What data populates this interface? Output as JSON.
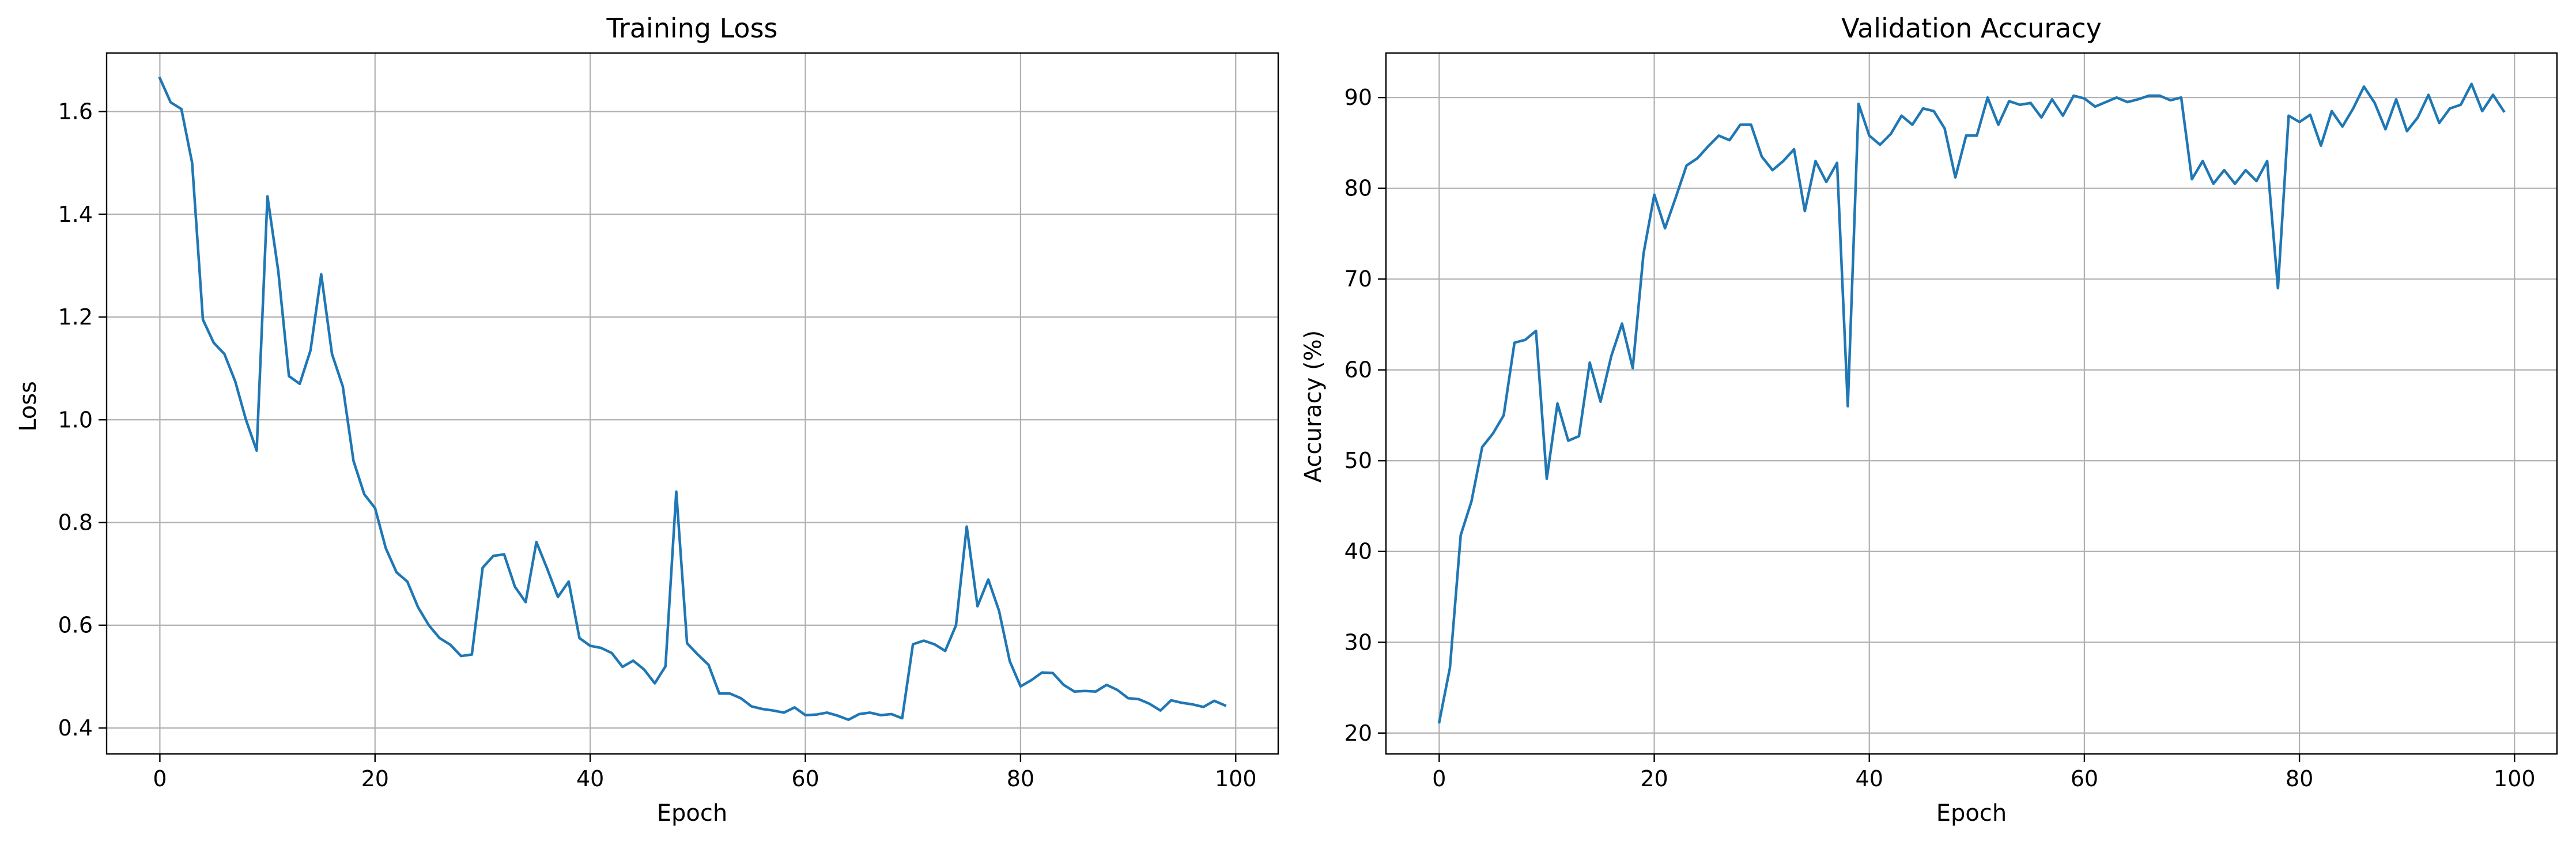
{
  "figure": {
    "background": "#ffffff"
  },
  "chart_data": [
    {
      "type": "line",
      "title": "Training Loss",
      "xlabel": "Epoch",
      "ylabel": "Loss",
      "xlim": [
        -4.95,
        103.95
      ],
      "ylim": [
        0.3495,
        1.7139
      ],
      "xticks": [
        0,
        20,
        40,
        60,
        80,
        100
      ],
      "yticks": [
        0.4,
        0.6,
        0.8,
        1.0,
        1.2,
        1.4,
        1.6
      ],
      "xtick_labels": [
        "0",
        "20",
        "40",
        "60",
        "80",
        "100"
      ],
      "ytick_labels": [
        "0.4",
        "0.6",
        "0.8",
        "1.0",
        "1.2",
        "1.4",
        "1.6"
      ],
      "grid": true,
      "legend": null,
      "series": [
        {
          "color": "#1f77b4",
          "x": [
            0,
            1,
            2,
            3,
            4,
            5,
            6,
            7,
            8,
            9,
            10,
            11,
            12,
            13,
            14,
            15,
            16,
            17,
            18,
            19,
            20,
            21,
            22,
            23,
            24,
            25,
            26,
            27,
            28,
            29,
            30,
            31,
            32,
            33,
            34,
            35,
            36,
            37,
            38,
            39,
            40,
            41,
            42,
            43,
            44,
            45,
            46,
            47,
            48,
            49,
            50,
            51,
            52,
            53,
            54,
            55,
            56,
            57,
            58,
            59,
            60,
            61,
            62,
            63,
            64,
            65,
            66,
            67,
            68,
            69,
            70,
            71,
            72,
            73,
            74,
            75,
            76,
            77,
            78,
            79,
            80,
            81,
            82,
            83,
            84,
            85,
            86,
            87,
            88,
            89,
            90,
            91,
            92,
            93,
            94,
            95,
            96,
            97,
            98,
            99
          ],
          "values": [
            1.665,
            1.618,
            1.605,
            1.5,
            1.195,
            1.15,
            1.128,
            1.075,
            1.0,
            0.94,
            1.435,
            1.29,
            1.085,
            1.07,
            1.135,
            1.283,
            1.128,
            1.065,
            0.92,
            0.855,
            0.828,
            0.75,
            0.703,
            0.685,
            0.635,
            0.6,
            0.575,
            0.562,
            0.54,
            0.543,
            0.712,
            0.735,
            0.738,
            0.675,
            0.645,
            0.762,
            0.71,
            0.655,
            0.685,
            0.575,
            0.56,
            0.556,
            0.546,
            0.519,
            0.531,
            0.514,
            0.487,
            0.52,
            0.86,
            0.565,
            0.543,
            0.523,
            0.467,
            0.467,
            0.458,
            0.442,
            0.437,
            0.434,
            0.43,
            0.44,
            0.425,
            0.426,
            0.43,
            0.424,
            0.416,
            0.427,
            0.43,
            0.425,
            0.427,
            0.419,
            0.563,
            0.57,
            0.563,
            0.55,
            0.6,
            0.792,
            0.637,
            0.689,
            0.628,
            0.53,
            0.481,
            0.493,
            0.508,
            0.507,
            0.484,
            0.471,
            0.472,
            0.471,
            0.484,
            0.474,
            0.458,
            0.456,
            0.447,
            0.434,
            0.454,
            0.449,
            0.446,
            0.441,
            0.453,
            0.444
          ]
        }
      ]
    },
    {
      "type": "line",
      "title": "Validation Accuracy",
      "xlabel": "Epoch",
      "ylabel": "Accuracy (%)",
      "xlim": [
        -4.95,
        103.95
      ],
      "ylim": [
        17.7,
        94.9
      ],
      "xticks": [
        0,
        20,
        40,
        60,
        80,
        100
      ],
      "yticks": [
        20,
        30,
        40,
        50,
        60,
        70,
        80,
        90
      ],
      "xtick_labels": [
        "0",
        "20",
        "40",
        "60",
        "80",
        "100"
      ],
      "ytick_labels": [
        "20",
        "30",
        "40",
        "50",
        "60",
        "70",
        "80",
        "90"
      ],
      "grid": true,
      "legend": null,
      "series": [
        {
          "color": "#1f77b4",
          "x": [
            0,
            1,
            2,
            3,
            4,
            5,
            6,
            7,
            8,
            9,
            10,
            11,
            12,
            13,
            14,
            15,
            16,
            17,
            18,
            19,
            20,
            21,
            22,
            23,
            24,
            25,
            26,
            27,
            28,
            29,
            30,
            31,
            32,
            33,
            34,
            35,
            36,
            37,
            38,
            39,
            40,
            41,
            42,
            43,
            44,
            45,
            46,
            47,
            48,
            49,
            50,
            51,
            52,
            53,
            54,
            55,
            56,
            57,
            58,
            59,
            60,
            61,
            62,
            63,
            64,
            65,
            66,
            67,
            68,
            69,
            70,
            71,
            72,
            73,
            74,
            75,
            76,
            77,
            78,
            79,
            80,
            81,
            82,
            83,
            84,
            85,
            86,
            87,
            88,
            89,
            90,
            91,
            92,
            93,
            94,
            95,
            96,
            97,
            98,
            99
          ],
          "values": [
            21.2,
            27.2,
            41.8,
            45.5,
            51.5,
            53.0,
            55.0,
            63.0,
            63.3,
            64.3,
            48.0,
            56.3,
            52.2,
            52.7,
            60.8,
            56.5,
            61.5,
            65.1,
            60.2,
            72.8,
            79.3,
            75.6,
            79.0,
            82.5,
            83.3,
            84.6,
            85.8,
            85.3,
            87.0,
            87.0,
            83.5,
            82.0,
            83.0,
            84.3,
            77.5,
            83.0,
            80.7,
            82.8,
            56.0,
            89.3,
            85.8,
            84.8,
            86.0,
            88.0,
            87.0,
            88.8,
            88.5,
            86.6,
            81.2,
            85.8,
            85.8,
            90.0,
            87.0,
            89.6,
            89.2,
            89.4,
            87.8,
            89.8,
            88.0,
            90.2,
            89.9,
            89.0,
            89.5,
            90.0,
            89.5,
            89.8,
            90.2,
            90.2,
            89.7,
            90.0,
            81.0,
            83.0,
            80.5,
            82.0,
            80.5,
            82.0,
            80.8,
            83.0,
            69.0,
            88.0,
            87.3,
            88.1,
            84.7,
            88.5,
            86.8,
            88.8,
            91.2,
            89.4,
            86.5,
            89.8,
            86.3,
            87.8,
            90.3,
            87.2,
            88.8,
            89.2,
            91.5,
            88.5,
            90.3,
            88.5
          ]
        }
      ]
    }
  ]
}
